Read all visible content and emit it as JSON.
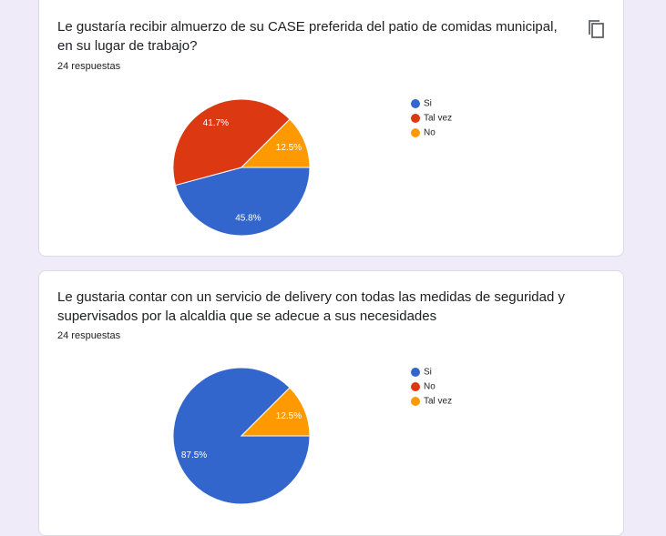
{
  "chart_data": [
    {
      "type": "pie",
      "title": "Le gustaría recibir almuerzo de su CASE preferida del patio de comidas municipal, en su lugar de trabajo?",
      "subtitle": "24 respuestas",
      "categories": [
        "Si",
        "Tal vez",
        "No"
      ],
      "values": [
        45.8,
        41.7,
        12.5
      ],
      "value_labels": [
        "45.8%",
        "41.7%",
        "12.5%"
      ],
      "colors": [
        "#3366cc",
        "#dc3912",
        "#ff9900"
      ]
    },
    {
      "type": "pie",
      "title": "Le gustaria contar con un servicio de delivery con todas las medidas de seguridad y supervisados por la alcaldia que se adecue a sus necesidades",
      "subtitle": "24 respuestas",
      "categories": [
        "Si",
        "No",
        "Tal vez"
      ],
      "values": [
        87.5,
        0,
        12.5
      ],
      "value_labels": [
        "87.5%",
        null,
        "12.5%"
      ],
      "colors": [
        "#3366cc",
        "#dc3912",
        "#ff9900"
      ]
    }
  ]
}
